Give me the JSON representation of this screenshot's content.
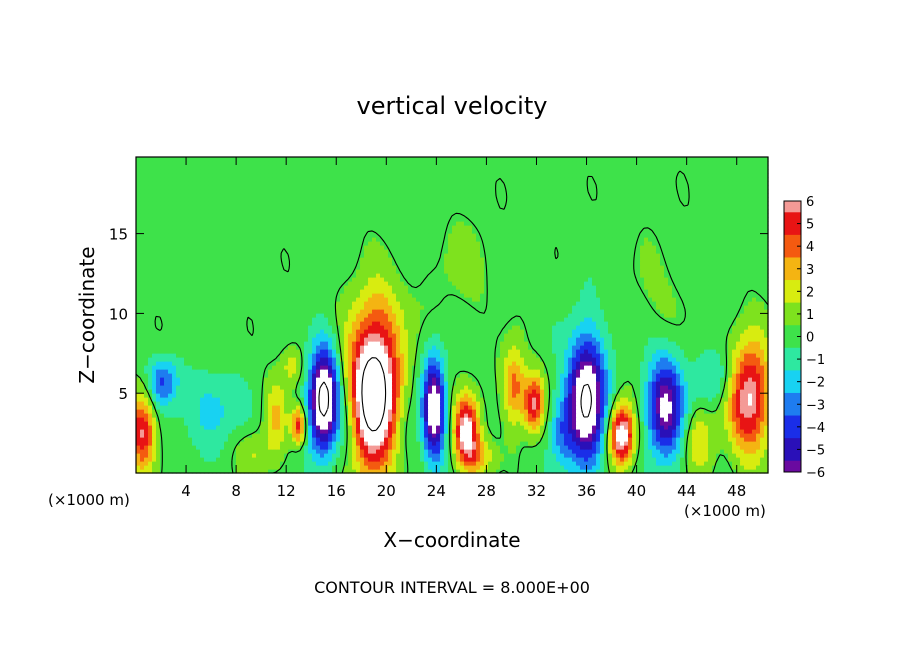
{
  "chart_data": {
    "type": "heatmap",
    "title": "vertical velocity",
    "xlabel": "X−coordinate",
    "ylabel": "Z−coordinate",
    "x_unit_label_left": "(×1000 m)",
    "x_unit_label_right": "(×1000 m)",
    "footer": "CONTOUR INTERVAL = 8.000E+00",
    "xlim": [
      0,
      50.5
    ],
    "ylim": [
      0,
      19.8
    ],
    "x_ticks": [
      4,
      8,
      12,
      16,
      20,
      24,
      28,
      32,
      36,
      40,
      44,
      48
    ],
    "y_ticks": [
      5,
      10,
      15
    ],
    "colorbar": {
      "min": -6,
      "max": 6,
      "tick_values": [
        6,
        5,
        4,
        3,
        2,
        1,
        0,
        -1,
        -2,
        -3,
        -4,
        -5,
        -6
      ],
      "tick_labels": [
        "6",
        "5",
        "4",
        "3",
        "2",
        "1",
        "0",
        "−1",
        "−2",
        "−3",
        "−4",
        "−5",
        "−6"
      ],
      "colors": [
        {
          "v": -6,
          "c": "#6a0aa0"
        },
        {
          "v": -5,
          "c": "#2a10b8"
        },
        {
          "v": -4,
          "c": "#1a2ee8"
        },
        {
          "v": -3,
          "c": "#1e7cf0"
        },
        {
          "v": -2,
          "c": "#18d2f2"
        },
        {
          "v": -1,
          "c": "#2ee8a0"
        },
        {
          "v": 0,
          "c": "#3ee24a"
        },
        {
          "v": 1,
          "c": "#7ee21e"
        },
        {
          "v": 2,
          "c": "#d8ec10"
        },
        {
          "v": 3,
          "c": "#f4b412"
        },
        {
          "v": 4,
          "c": "#f45a10"
        },
        {
          "v": 5,
          "c": "#e81414"
        },
        {
          "v": 6,
          "c": "#f49a96"
        }
      ]
    },
    "features": [
      {
        "x": 19.0,
        "z": 5.0,
        "sx": 2.0,
        "sz": 4.8,
        "a": 10
      },
      {
        "x": 15.0,
        "z": 4.6,
        "sx": 1.2,
        "sz": 3.3,
        "a": -9
      },
      {
        "x": 13.0,
        "z": 3.0,
        "sx": 0.6,
        "sz": 1.2,
        "a": 5
      },
      {
        "x": 11.2,
        "z": 3.6,
        "sx": 0.9,
        "sz": 2.4,
        "a": 2.5
      },
      {
        "x": 23.8,
        "z": 4.0,
        "sx": 0.9,
        "sz": 3.3,
        "a": -7.5
      },
      {
        "x": 26.4,
        "z": 2.6,
        "sx": 1.0,
        "sz": 2.2,
        "a": 7
      },
      {
        "x": 27.5,
        "z": 1.0,
        "sx": 1.2,
        "sz": 1.2,
        "a": 2.5
      },
      {
        "x": 30.2,
        "z": 5.5,
        "sx": 0.9,
        "sz": 2.4,
        "a": 4
      },
      {
        "x": 31.8,
        "z": 4.4,
        "sx": 0.8,
        "sz": 1.8,
        "a": 5.5
      },
      {
        "x": 36.0,
        "z": 4.6,
        "sx": 1.5,
        "sz": 4.0,
        "a": -8.5
      },
      {
        "x": 38.8,
        "z": 2.4,
        "sx": 1.0,
        "sz": 1.9,
        "a": 7.5
      },
      {
        "x": 42.3,
        "z": 4.2,
        "sx": 1.5,
        "sz": 3.2,
        "a": -6.5
      },
      {
        "x": 45.0,
        "z": 2.0,
        "sx": 1.2,
        "sz": 2.0,
        "a": 2.5
      },
      {
        "x": 49.0,
        "z": 4.8,
        "sx": 1.7,
        "sz": 3.6,
        "a": 6.5
      },
      {
        "x": 0.5,
        "z": 2.6,
        "sx": 1.0,
        "sz": 2.4,
        "a": 5.5
      },
      {
        "x": 2.2,
        "z": 5.8,
        "sx": 1.2,
        "sz": 1.5,
        "a": -3.5
      },
      {
        "x": 6.0,
        "z": 4.0,
        "sx": 2.2,
        "sz": 2.2,
        "a": -2
      },
      {
        "x": 9.5,
        "z": 1.2,
        "sx": 1.4,
        "sz": 1.4,
        "a": 1.5
      },
      {
        "x": 17.0,
        "z": 3.0,
        "sx": 0.9,
        "sz": 2.6,
        "a": -1.5
      },
      {
        "x": 21.5,
        "z": 3.0,
        "sx": 0.9,
        "sz": 2.4,
        "a": -1.2
      },
      {
        "x": 34.0,
        "z": 2.6,
        "sx": 1.0,
        "sz": 2.2,
        "a": -2.5
      },
      {
        "x": 46.5,
        "z": 6.0,
        "sx": 1.5,
        "sz": 1.8,
        "a": -2
      },
      {
        "x": 12.5,
        "z": 6.8,
        "sx": 0.9,
        "sz": 1.2,
        "a": 2
      },
      {
        "x": 42.0,
        "z": 11.0,
        "sx": 3.0,
        "sz": 4.0,
        "a": 0.6
      },
      {
        "x": 26.0,
        "z": 13.0,
        "sx": 3.0,
        "sz": 3.5,
        "a": 0.7
      },
      {
        "x": 20.0,
        "z": 10.0,
        "sx": 2.5,
        "sz": 2.5,
        "a": 0.8
      }
    ]
  }
}
